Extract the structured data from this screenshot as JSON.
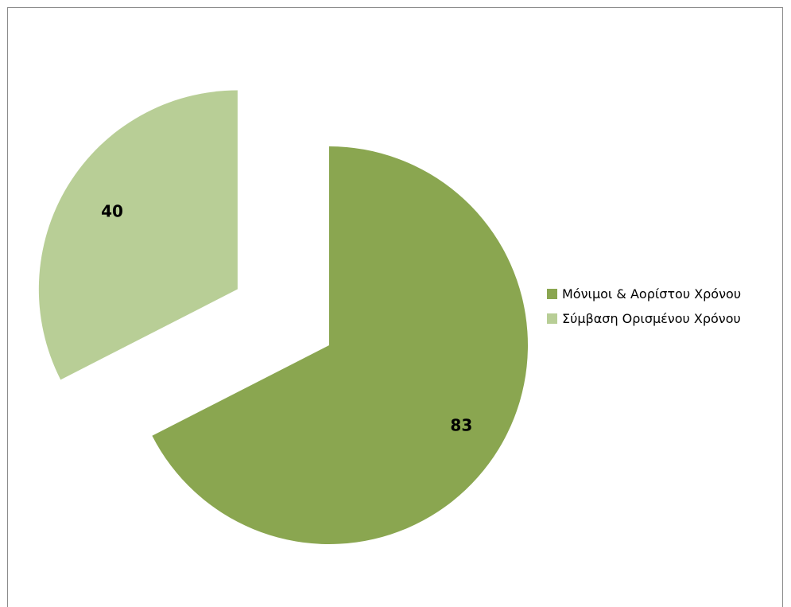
{
  "chart_data": {
    "type": "pie",
    "title": "",
    "exploded": true,
    "legend_position": "right",
    "slices": [
      {
        "label": "Μόνιμοι & Αορίστου Χρόνου",
        "value": 83,
        "color": "#8aa650"
      },
      {
        "label": "Σύμβαση Ορισμένου Χρόνου",
        "value": 40,
        "color": "#b8ce96"
      }
    ],
    "data_labels": [
      "83",
      "40"
    ]
  }
}
